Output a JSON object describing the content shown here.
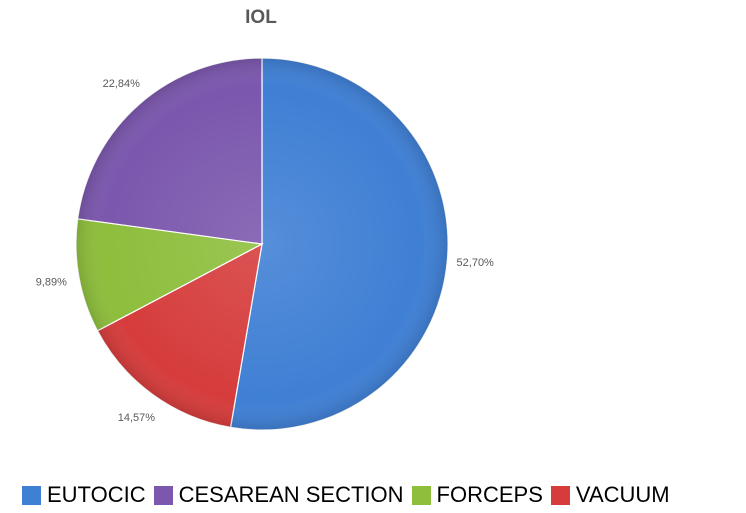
{
  "chart_data": {
    "type": "pie",
    "title": "IOL",
    "slices": [
      {
        "label": "EUTOCIC",
        "value": 52.7,
        "display": "52,70%",
        "color": "#3f7fd4"
      },
      {
        "label": "VACUUM",
        "value": 14.57,
        "display": "14,57%",
        "color": "#d63c3c"
      },
      {
        "label": "FORCEPS",
        "value": 9.89,
        "display": "9,89%",
        "color": "#8dbe3c"
      },
      {
        "label": "CESAREAN SECTION",
        "value": 22.84,
        "display": "22,84%",
        "color": "#7b57ad"
      }
    ],
    "legend": {
      "placement": "bottom",
      "order": [
        "EUTOCIC",
        "CESAREAN SECTION",
        "FORCEPS",
        "VACUUM"
      ]
    }
  }
}
